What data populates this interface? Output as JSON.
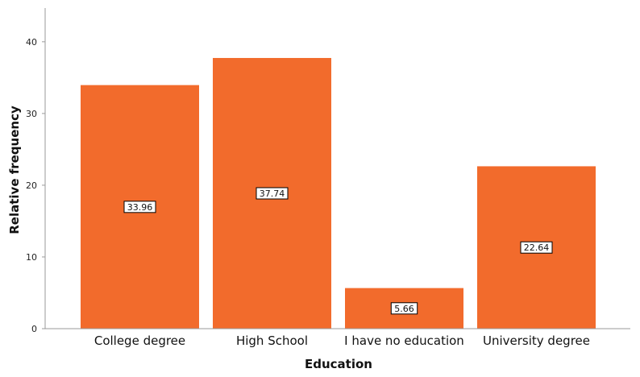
{
  "chart_data": {
    "type": "bar",
    "title": "",
    "xlabel": "Education",
    "ylabel": "Relative frequency",
    "categories": [
      "College degree",
      "High School",
      "I have no education",
      "University degree"
    ],
    "values": [
      33.96,
      37.74,
      5.66,
      22.64
    ],
    "data_labels": [
      "33.96",
      "37.74",
      "5.66",
      "22.64"
    ],
    "yticks": [
      0,
      10,
      20,
      30,
      40
    ],
    "ytick_labels": [
      "0",
      "10",
      "20",
      "30",
      "40"
    ],
    "ylim": [
      0,
      44.7
    ],
    "grid": false,
    "legend": "none",
    "colors": {
      "bar": "#f26b2c",
      "axis": "#9a9a9a",
      "label_box_border": "#000000",
      "label_box_fill": "#ffffff"
    }
  }
}
